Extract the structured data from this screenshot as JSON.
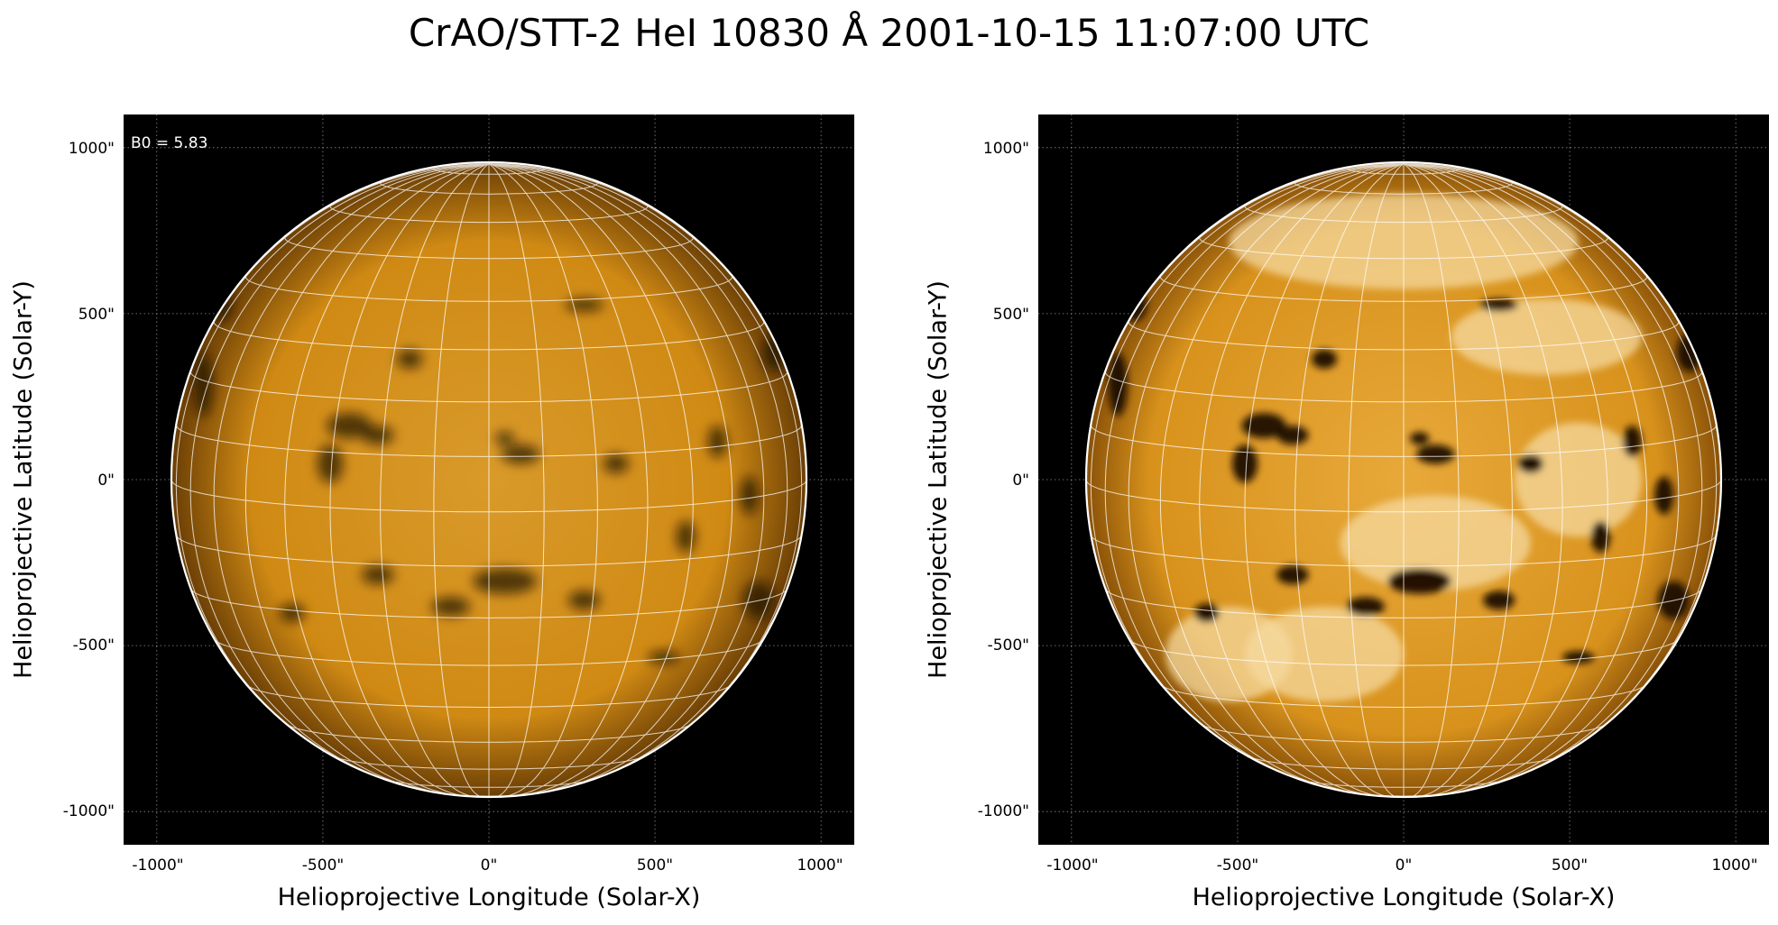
{
  "figure": {
    "title": "CrAO/STT-2 HeI 10830 Å 2001-10-15 11:07:00 UTC",
    "x_axis_label": "Helioprojective Longitude (Solar-X)",
    "y_axis_label": "Helioprojective Latitude (Solar-Y)",
    "x_ticks": [
      "-1000\"",
      "-500\"",
      "0\"",
      "500\"",
      "1000\""
    ],
    "y_ticks": [
      "1000\"",
      "500\"",
      "0\"",
      "-500\"",
      "-1000\""
    ],
    "axis_range_arcsec": [
      -1100,
      1100
    ],
    "b0_annotation": "B0 = 5.83",
    "colors": {
      "disk_base": "#d08a14",
      "disk_light": "#f6d9a0",
      "disk_dark": "#1a0a00",
      "background": "#000000",
      "grid": "#ffffff"
    }
  },
  "panels": [
    {
      "name": "left",
      "variant": "normal-contrast"
    },
    {
      "name": "right",
      "variant": "enhanced-contrast"
    }
  ]
}
